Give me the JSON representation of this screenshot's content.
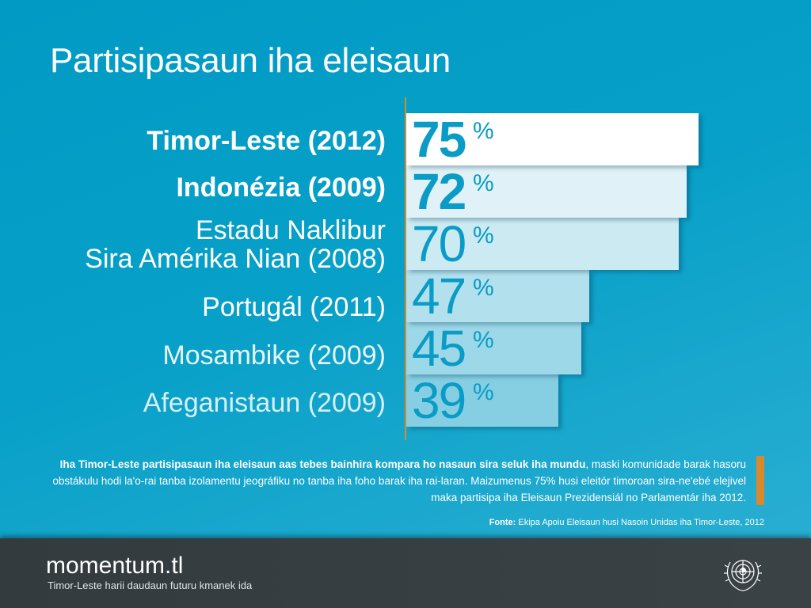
{
  "title": "Partisipasaun iha eleisaun",
  "chart_data": {
    "type": "bar",
    "orientation": "horizontal",
    "title": "Partisipasaun iha eleisaun",
    "categories": [
      "Timor-Leste (2012)",
      "Indonézia (2009)",
      "Estadu Naklibur Sira Amérika Nian (2008)",
      "Portugál (2011)",
      "Mosambike (2009)",
      "Afeganistaun (2009)"
    ],
    "category_lines": [
      [
        "Timor-Leste (2012)"
      ],
      [
        "Indonézia (2009)"
      ],
      [
        "Estadu Naklibur",
        "Sira Amérika Nian (2008)"
      ],
      [
        "Portugál (2011)"
      ],
      [
        "Mosambike (2009)"
      ],
      [
        "Afeganistaun (2009)"
      ]
    ],
    "values": [
      75,
      72,
      70,
      47,
      45,
      39
    ],
    "unit": "%",
    "bar_colors": [
      "#ffffff",
      "#e0f2f7",
      "#cbeaf2",
      "#b3e0ed",
      "#9dd8e8",
      "#86cfe3"
    ],
    "label_colors": [
      "#ffffff",
      "#ffffff",
      "#ffffff",
      "#ffffff",
      "#e6f5fa",
      "#d6eff7"
    ],
    "value_weights": [
      700,
      700,
      400,
      300,
      300,
      300
    ],
    "label_weights": [
      700,
      700,
      400,
      400,
      300,
      300
    ]
  },
  "description": {
    "bold": "Iha Timor-Leste partisipasaun iha eleisaun aas tebes bainhira kompara ho nasaun sira seluk iha mundu",
    "rest": ", maski komunidade barak hasoru obstákulu hodi la'o-rai tanba izolamentu jeográfiku no tanba iha foho barak iha rai-laran. Maizumenus 75% husi eleitór timoroan sira-ne'ebé elejivel maka partisipa iha Eleisaun Prezidensiál no Parlamentár iha 2012."
  },
  "source": {
    "label": "Fonte:",
    "text": " Ekipa Apoiu Eleisaun husi Nasoin Unidas iha Timor-Leste, 2012"
  },
  "footer": {
    "brand": "momentum.tl",
    "tagline": "Timor-Leste harii daudaun futuru kmanek ida"
  },
  "colors": {
    "accent": "#d9892b",
    "bg": "#009ac4",
    "footer": "#363d40",
    "number": "#0a9cc6"
  }
}
